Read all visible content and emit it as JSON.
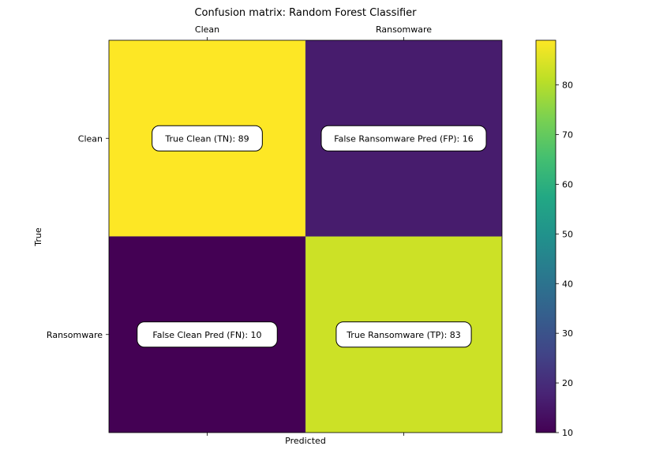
{
  "chart_data": {
    "type": "heatmap",
    "title": "Confusion matrix: Random Forest Classifier",
    "xlabel": "Predicted",
    "ylabel": "True",
    "x_categories": [
      "Clean",
      "Ransomware"
    ],
    "y_categories": [
      "Clean",
      "Ransomware"
    ],
    "values": [
      [
        89,
        16
      ],
      [
        10,
        83
      ]
    ],
    "cell_labels": [
      [
        "True Clean (TN): 89",
        "False Ransomware Pred (FP): 16"
      ],
      [
        "False Clean Pred (FN): 10",
        "True Ransomware (TP): 83"
      ]
    ],
    "colormap": "viridis",
    "colorbar": {
      "min": 10,
      "max": 89,
      "ticks": [
        10,
        20,
        30,
        40,
        50,
        60,
        70,
        80
      ]
    },
    "x_tick_position": "top",
    "grid": false
  }
}
